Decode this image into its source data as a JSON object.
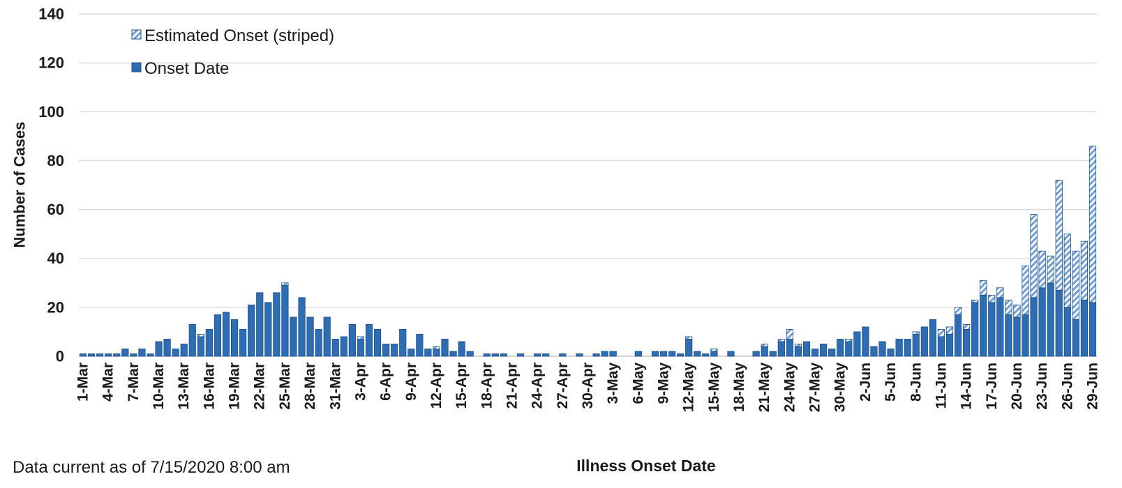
{
  "chart_data": {
    "type": "bar",
    "stacked": true,
    "xlabel": "Illness Onset Date",
    "ylabel": "Number of Cases",
    "ylim": [
      0,
      140
    ],
    "yticks": [
      "0",
      "20",
      "40",
      "60",
      "80",
      "100",
      "120",
      "140"
    ],
    "grid": true,
    "legend_position": "top-left",
    "footnote": "Data current as of 7/15/2020 8:00 am",
    "colors": {
      "bar": "#2e6db4",
      "stripe": "#a9c9ea",
      "edge": "#1f4f86",
      "grid": "#d9d9d9"
    },
    "categories": [
      "1-Mar",
      "2-Mar",
      "3-Mar",
      "4-Mar",
      "5-Mar",
      "6-Mar",
      "7-Mar",
      "8-Mar",
      "9-Mar",
      "10-Mar",
      "11-Mar",
      "12-Mar",
      "13-Mar",
      "14-Mar",
      "15-Mar",
      "16-Mar",
      "17-Mar",
      "18-Mar",
      "19-Mar",
      "20-Mar",
      "21-Mar",
      "22-Mar",
      "23-Mar",
      "24-Mar",
      "25-Mar",
      "26-Mar",
      "27-Mar",
      "28-Mar",
      "29-Mar",
      "30-Mar",
      "31-Mar",
      "1-Apr",
      "2-Apr",
      "3-Apr",
      "4-Apr",
      "5-Apr",
      "6-Apr",
      "7-Apr",
      "8-Apr",
      "9-Apr",
      "10-Apr",
      "11-Apr",
      "12-Apr",
      "13-Apr",
      "14-Apr",
      "15-Apr",
      "16-Apr",
      "17-Apr",
      "18-Apr",
      "19-Apr",
      "20-Apr",
      "21-Apr",
      "22-Apr",
      "23-Apr",
      "24-Apr",
      "25-Apr",
      "26-Apr",
      "27-Apr",
      "28-Apr",
      "29-Apr",
      "30-Apr",
      "1-May",
      "2-May",
      "3-May",
      "4-May",
      "5-May",
      "6-May",
      "7-May",
      "8-May",
      "9-May",
      "10-May",
      "11-May",
      "12-May",
      "13-May",
      "14-May",
      "15-May",
      "16-May",
      "17-May",
      "18-May",
      "19-May",
      "20-May",
      "21-May",
      "22-May",
      "23-May",
      "24-May",
      "25-May",
      "26-May",
      "27-May",
      "28-May",
      "29-May",
      "30-May",
      "31-May",
      "1-Jun",
      "2-Jun",
      "3-Jun",
      "4-Jun",
      "5-Jun",
      "6-Jun",
      "7-Jun",
      "8-Jun",
      "9-Jun",
      "10-Jun",
      "11-Jun",
      "12-Jun",
      "13-Jun",
      "14-Jun",
      "15-Jun",
      "16-Jun",
      "17-Jun",
      "18-Jun",
      "19-Jun",
      "20-Jun",
      "21-Jun",
      "22-Jun",
      "23-Jun",
      "24-Jun",
      "25-Jun",
      "26-Jun",
      "27-Jun",
      "28-Jun",
      "29-Jun"
    ],
    "tick_labels": [
      "1-Mar",
      "4-Mar",
      "7-Mar",
      "10-Mar",
      "13-Mar",
      "16-Mar",
      "19-Mar",
      "22-Mar",
      "25-Mar",
      "28-Mar",
      "31-Mar",
      "3-Apr",
      "6-Apr",
      "9-Apr",
      "12-Apr",
      "15-Apr",
      "18-Apr",
      "21-Apr",
      "24-Apr",
      "27-Apr",
      "30-Apr",
      "3-May",
      "6-May",
      "9-May",
      "12-May",
      "15-May",
      "18-May",
      "21-May",
      "24-May",
      "27-May",
      "30-May",
      "2-Jun",
      "5-Jun",
      "8-Jun",
      "11-Jun",
      "14-Jun",
      "17-Jun",
      "20-Jun",
      "23-Jun",
      "26-Jun",
      "29-Jun"
    ],
    "series": [
      {
        "name": "Onset Date",
        "values": [
          1,
          1,
          1,
          1,
          1,
          3,
          1,
          3,
          1,
          6,
          7,
          3,
          5,
          13,
          8,
          11,
          17,
          18,
          15,
          11,
          21,
          26,
          22,
          26,
          29,
          16,
          24,
          16,
          11,
          16,
          7,
          8,
          13,
          7,
          13,
          11,
          5,
          5,
          11,
          3,
          9,
          3,
          3,
          7,
          2,
          6,
          2,
          0,
          1,
          1,
          1,
          0,
          1,
          0,
          1,
          1,
          0,
          1,
          0,
          1,
          0,
          1,
          2,
          2,
          0,
          0,
          2,
          0,
          2,
          2,
          2,
          1,
          7,
          2,
          1,
          2,
          0,
          2,
          0,
          0,
          2,
          4,
          2,
          6,
          7,
          4,
          6,
          3,
          5,
          3,
          7,
          6,
          10,
          12,
          4,
          6,
          3,
          7,
          7,
          9,
          12,
          15,
          8,
          9,
          17,
          11,
          22,
          25,
          22,
          24,
          17,
          16,
          17,
          24,
          28,
          30,
          27,
          20,
          15,
          23,
          22
        ]
      },
      {
        "name": "Estimated Onset (striped)",
        "values": [
          0,
          0,
          0,
          0,
          0,
          0,
          0,
          0,
          0,
          0,
          0,
          0,
          0,
          0,
          1,
          0,
          0,
          0,
          0,
          0,
          0,
          0,
          0,
          0,
          1,
          0,
          0,
          0,
          0,
          0,
          0,
          0,
          0,
          1,
          0,
          0,
          0,
          0,
          0,
          0,
          0,
          0,
          1,
          0,
          0,
          0,
          0,
          0,
          0,
          0,
          0,
          0,
          0,
          0,
          0,
          0,
          0,
          0,
          0,
          0,
          0,
          0,
          0,
          0,
          0,
          0,
          0,
          0,
          0,
          0,
          0,
          0,
          1,
          0,
          0,
          1,
          0,
          0,
          0,
          0,
          0,
          1,
          0,
          1,
          4,
          1,
          0,
          0,
          0,
          0,
          0,
          1,
          0,
          0,
          0,
          0,
          0,
          0,
          0,
          1,
          0,
          0,
          3,
          3,
          3,
          2,
          1,
          6,
          3,
          4,
          6,
          5,
          20,
          34,
          15,
          11,
          45,
          30,
          28,
          24,
          64
        ]
      }
    ]
  },
  "legend": [
    {
      "label": "Estimated Onset (striped)"
    },
    {
      "label": "Onset Date"
    }
  ]
}
